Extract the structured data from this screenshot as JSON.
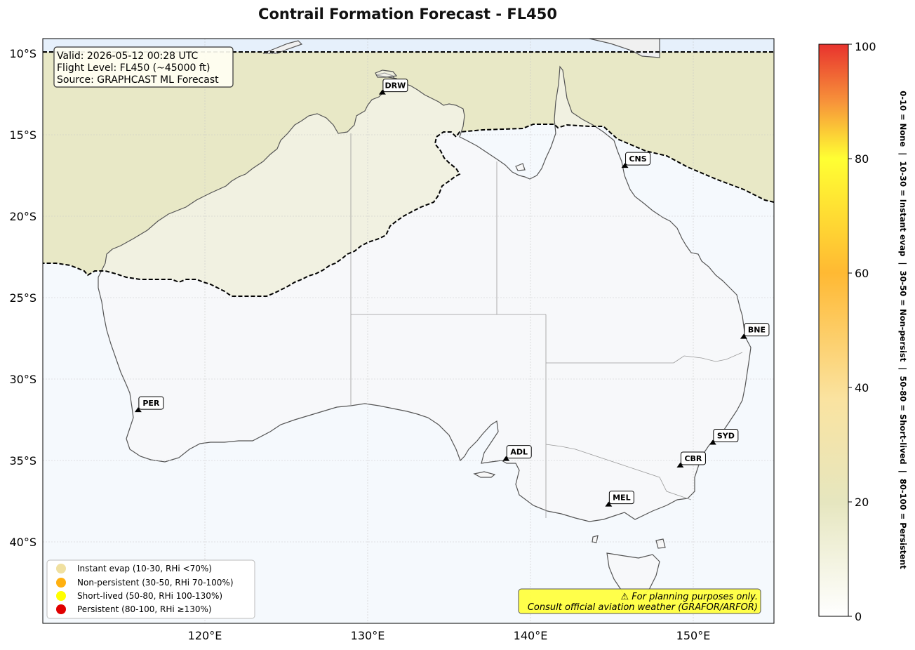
{
  "title": "Contrail Formation Forecast - FL450",
  "info_box": {
    "lines": [
      "Valid: 2026-05-12 00:28 UTC",
      "Flight Level: FL450 (~45000 ft)",
      "Source: GRAPHCAST ML Forecast"
    ]
  },
  "lat_ticks": [
    "10°S",
    "15°S",
    "20°S",
    "25°S",
    "30°S",
    "35°S",
    "40°S"
  ],
  "lon_ticks": [
    "120°E",
    "130°E",
    "140°E",
    "150°E"
  ],
  "airports": [
    {
      "code": "DRW",
      "lon": 130.9,
      "lat": -12.4
    },
    {
      "code": "CNS",
      "lon": 145.8,
      "lat": -16.9
    },
    {
      "code": "BNE",
      "lon": 153.1,
      "lat": -27.4
    },
    {
      "code": "PER",
      "lon": 115.9,
      "lat": -31.9
    },
    {
      "code": "SYD",
      "lon": 151.2,
      "lat": -33.9
    },
    {
      "code": "ADL",
      "lon": 138.5,
      "lat": -34.9
    },
    {
      "code": "CBR",
      "lon": 149.2,
      "lat": -35.3
    },
    {
      "code": "MEL",
      "lon": 144.8,
      "lat": -37.7
    }
  ],
  "legend": [
    {
      "label": "Instant evap (10-30, RHi <70%)",
      "color": "#f0e0a0"
    },
    {
      "label": "Non-persistent (30-50, RHi 70-100%)",
      "color": "#ffb010"
    },
    {
      "label": "Short-lived (50-80, RHi 100-130%)",
      "color": "#ffff00"
    },
    {
      "label": "Persistent (80-100, RHi ≥130%)",
      "color": "#e00000"
    }
  ],
  "disclaimer": [
    "⚠ For planning purposes only.",
    "Consult official aviation weather (GRAFOR/ARFOR)"
  ],
  "colorbar": {
    "ticks": [
      "0",
      "20",
      "40",
      "60",
      "80",
      "100"
    ],
    "label": "0-10 = None  |  10-30 = Instant evap  |  30-50 = Non-persist  |  50-80 = Short-lived  |  80-100 = Persistent"
  },
  "colors": {
    "ocean": "#f5f9fd",
    "land": "#f8f8f8",
    "contrail_zone": "#e8e8c6",
    "north_strip": "#e6f0fb",
    "disclaimer_bg": "#ffff40"
  }
}
